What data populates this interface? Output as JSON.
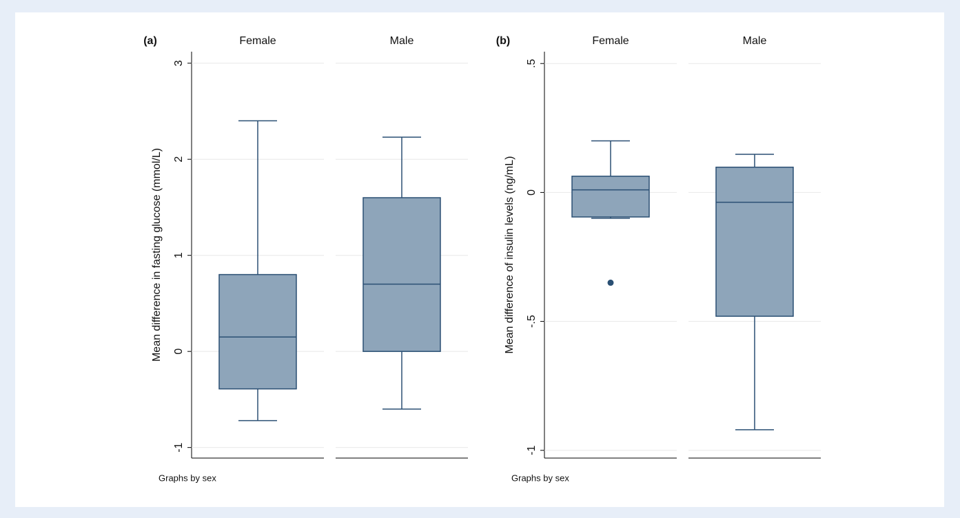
{
  "chart_data": [
    {
      "type": "box",
      "title": "(a)",
      "ylabel": "Mean difference in fasting glucose (mmol/L)",
      "categories": [
        "Female",
        "Male"
      ],
      "note": "Graphs by sex",
      "ylim": [
        -1.11,
        3.12
      ],
      "yticks": [
        -1,
        0,
        1,
        2,
        3
      ],
      "grid": true,
      "color": "#8ea5ba",
      "edge_color": "#2a4f73",
      "boxes": [
        {
          "whislo": -0.72,
          "q1": -0.39,
          "median": 0.15,
          "q3": 0.8,
          "whishi": 2.4,
          "outliers": []
        },
        {
          "whislo": -0.6,
          "q1": 0,
          "median": 0.7,
          "q3": 1.6,
          "whishi": 2.23,
          "outliers": []
        }
      ]
    },
    {
      "type": "box",
      "title": "(b)",
      "ylabel": "Mean difference of insulin levels (ng/mL)",
      "categories": [
        "Female",
        "Male"
      ],
      "note": "Graphs by sex",
      "ylim": [
        -1.03,
        0.546
      ],
      "yticks": [
        -1,
        {
          "value": -0.5,
          "label": "-.5"
        },
        0,
        {
          "value": 0.5,
          "label": ".5"
        }
      ],
      "grid": true,
      "color": "#8ea5ba",
      "edge_color": "#2a4f73",
      "boxes": [
        {
          "whislo": -0.1,
          "q1": -0.095,
          "median": 0.01,
          "q3": 0.063,
          "whishi": 0.2,
          "outliers": [
            -0.35
          ]
        },
        {
          "whislo": -0.92,
          "q1": -0.48,
          "median": -0.038,
          "q3": 0.098,
          "whishi": 0.148,
          "outliers": []
        }
      ]
    }
  ]
}
